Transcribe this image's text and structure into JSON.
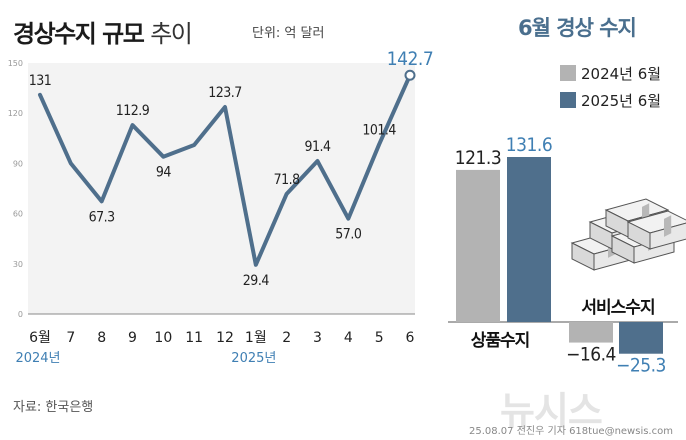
{
  "header": {
    "title_bold": "경상수지 규모",
    "title_light": "추이",
    "unit": "단위: 억 달러"
  },
  "right_panel": {
    "title": "6월 경상 수지",
    "legend": [
      {
        "label": "2024년 6월",
        "color": "#b3b3b3"
      },
      {
        "label": "2025년 6월",
        "color": "#4f6f8c"
      }
    ]
  },
  "colors": {
    "line": "#4f6f8c",
    "plot_bg": "#f3f3f3",
    "bar_2024": "#b3b3b3",
    "bar_2025": "#4f6f8c",
    "highlight_text": "#3f7fb3"
  },
  "chart_data": [
    {
      "type": "line",
      "categories": [
        "6월",
        "7",
        "8",
        "9",
        "10",
        "11",
        "12",
        "1월",
        "2",
        "3",
        "4",
        "5",
        "6"
      ],
      "year_labels": [
        {
          "index": 0,
          "label": "2024년"
        },
        {
          "index": 7,
          "label": "2025년"
        }
      ],
      "values": [
        131,
        90,
        67.3,
        112.9,
        94,
        101,
        123.7,
        29.4,
        71.8,
        91.4,
        57.0,
        101.4,
        142.7
      ],
      "data_labels": [
        "131",
        "",
        "67.3",
        "112.9",
        "94",
        "",
        "123.7",
        "29.4",
        "71.8",
        "91.4",
        "57.0",
        "101.4",
        "142.7"
      ],
      "yticks": [
        0,
        30,
        60,
        90,
        120,
        150
      ],
      "ylim": [
        0,
        150
      ],
      "grid": false
    },
    {
      "type": "bar",
      "categories": [
        "상품수지",
        "서비스수지"
      ],
      "series": [
        {
          "name": "2024년 6월",
          "values": [
            121.3,
            -16.4
          ],
          "labels": [
            "121.3",
            "−16.4"
          ]
        },
        {
          "name": "2025년 6월",
          "values": [
            131.6,
            -25.3
          ],
          "labels": [
            "131.6",
            "−25.3"
          ]
        }
      ]
    }
  ],
  "footer": {
    "source": "자료: 한국은행",
    "credit": "25.08.07 전진우 기자 618tue@newsis.com",
    "watermark": "뉴시스"
  }
}
